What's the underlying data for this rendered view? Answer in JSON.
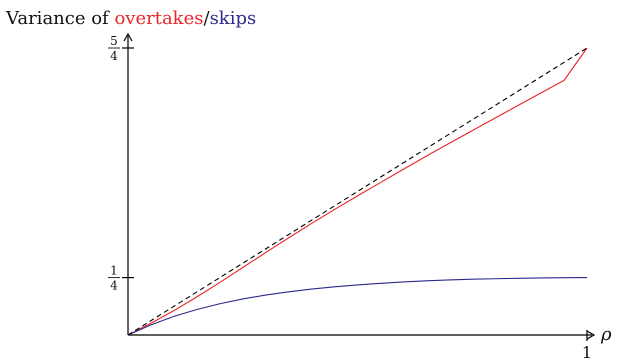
{
  "chart_data": {
    "type": "line",
    "title": {
      "prefix": "Variance of ",
      "series_a": "overtakes",
      "separator": "/",
      "series_b": "skips"
    },
    "xlabel": "ρ",
    "ylabel": "",
    "xlim": [
      0,
      1
    ],
    "ylim": [
      0,
      1.25
    ],
    "x_ticks": [
      {
        "value": 1,
        "label": "1"
      }
    ],
    "y_ticks": [
      {
        "value": 0.25,
        "num": "1",
        "den": "4"
      },
      {
        "value": 1.25,
        "num": "5",
        "den": "4"
      }
    ],
    "grid": false,
    "legend": "none (series named by colored words in title)",
    "series": [
      {
        "name": "overtakes",
        "color": "#e8262b",
        "style": "solid",
        "x": [
          0,
          0.05,
          0.1,
          0.15,
          0.2,
          0.25,
          0.3,
          0.35,
          0.4,
          0.45,
          0.5,
          0.55,
          0.6,
          0.65,
          0.7,
          0.75,
          0.8,
          0.85,
          0.9,
          0.95,
          1.0
        ],
        "y": [
          0,
          0.051,
          0.106,
          0.166,
          0.229,
          0.294,
          0.359,
          0.423,
          0.486,
          0.547,
          0.606,
          0.664,
          0.722,
          0.779,
          0.835,
          0.89,
          0.945,
          1.0,
          1.0547,
          1.109,
          1.25
        ]
      },
      {
        "name": "skips",
        "color": "#2b2b8c",
        "style": "solid",
        "x": [
          0,
          0.05,
          0.1,
          0.15,
          0.2,
          0.25,
          0.3,
          0.35,
          0.4,
          0.45,
          0.5,
          0.55,
          0.6,
          0.65,
          0.7,
          0.75,
          0.8,
          0.85,
          0.9,
          0.95,
          1.0
        ],
        "y": [
          0,
          0.044,
          0.081,
          0.111,
          0.136,
          0.157,
          0.174,
          0.188,
          0.2,
          0.21,
          0.218,
          0.225,
          0.231,
          0.236,
          0.24,
          0.243,
          0.245,
          0.247,
          0.2485,
          0.2495,
          0.25
        ]
      },
      {
        "name": "",
        "color": "#000000",
        "style": "dashed",
        "x": [
          0,
          1
        ],
        "y": [
          0,
          1.25
        ]
      }
    ]
  }
}
